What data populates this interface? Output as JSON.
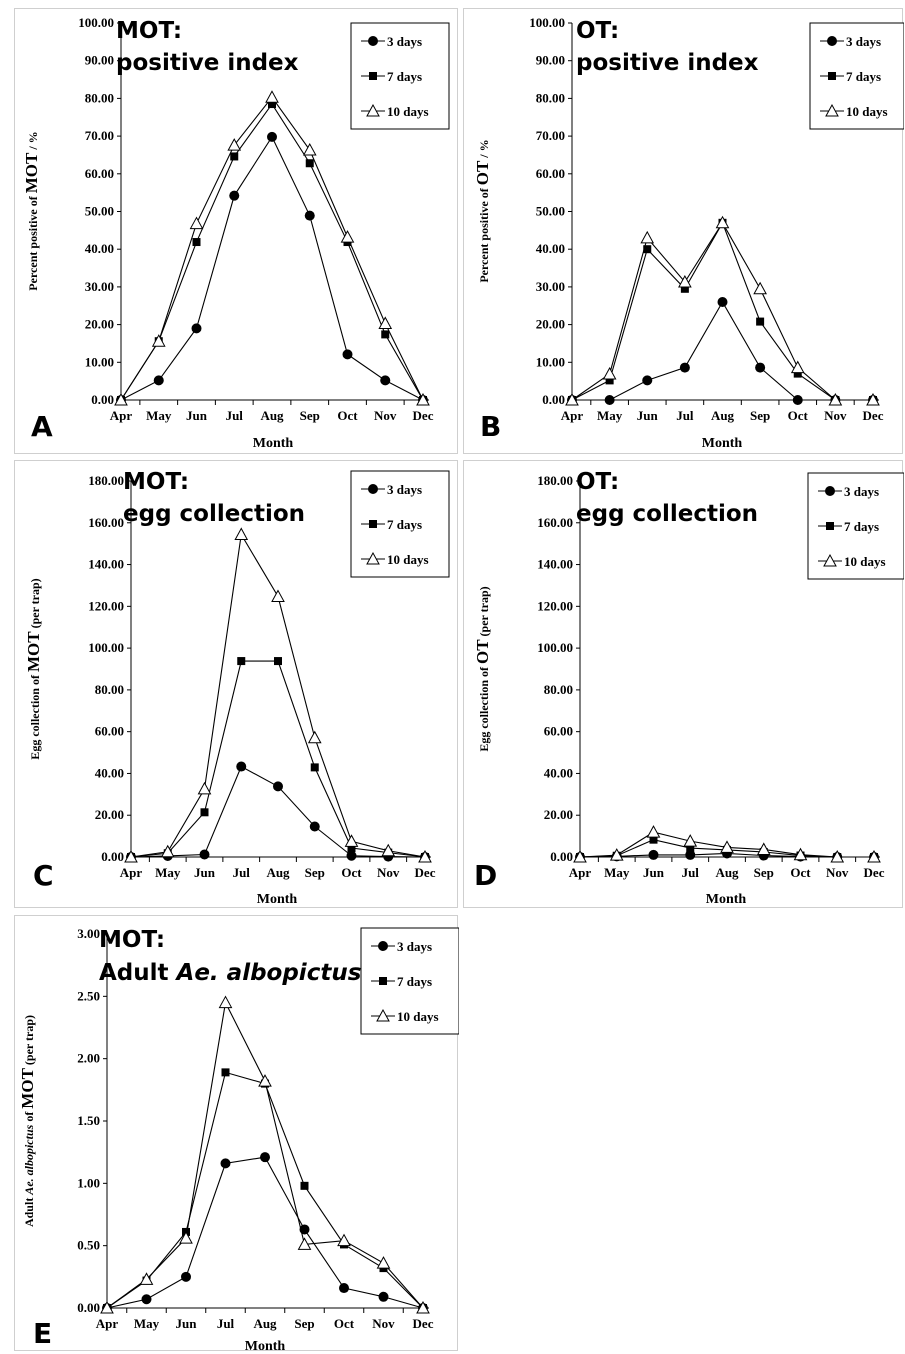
{
  "chart_data": [
    {
      "type": "line",
      "panel_label": "A",
      "title_lines": [
        "MOT:",
        "positive index"
      ],
      "ylabel_prefix": "Percent positive of ",
      "ylabel_big": "MOT",
      "ylabel_suffix": " / %",
      "xlabel": "Month",
      "categories": [
        "Apr",
        "May",
        "Jun",
        "Jul",
        "Aug",
        "Sep",
        "Oct",
        "Nov",
        "Dec"
      ],
      "ylim": [
        0,
        100
      ],
      "yticks": [
        "0.00",
        "10.00",
        "20.00",
        "30.00",
        "40.00",
        "50.00",
        "60.00",
        "70.00",
        "80.00",
        "90.00",
        "100.00"
      ],
      "series": [
        {
          "name": "3 days",
          "marker": "circle",
          "values": [
            0,
            5.2,
            19,
            54.2,
            69.8,
            48.9,
            12.1,
            5.2,
            0
          ]
        },
        {
          "name": "7 days",
          "marker": "square",
          "values": [
            0,
            15.6,
            41.9,
            64.6,
            78.5,
            62.8,
            41.9,
            17.4,
            0
          ]
        },
        {
          "name": "10 days",
          "marker": "triangle",
          "values": [
            0,
            15.6,
            46.8,
            67.6,
            80.3,
            66.3,
            43.2,
            20.3,
            0
          ]
        }
      ]
    },
    {
      "type": "line",
      "panel_label": "B",
      "title_lines": [
        "OT:",
        "positive index"
      ],
      "ylabel_prefix": "Percent positive of ",
      "ylabel_big": "OT",
      "ylabel_suffix": " / %",
      "xlabel": "Month",
      "categories": [
        "Apr",
        "May",
        "Jun",
        "Jul",
        "Aug",
        "Sep",
        "Oct",
        "Nov",
        "Dec"
      ],
      "ylim": [
        0,
        100
      ],
      "yticks": [
        "0.00",
        "10.00",
        "20.00",
        "30.00",
        "40.00",
        "50.00",
        "60.00",
        "70.00",
        "80.00",
        "90.00",
        "100.00"
      ],
      "series": [
        {
          "name": "3 days",
          "marker": "circle",
          "values": [
            0,
            0,
            5.2,
            8.6,
            26,
            8.6,
            0,
            0,
            0
          ]
        },
        {
          "name": "7 days",
          "marker": "square",
          "values": [
            0,
            5.2,
            40,
            29.5,
            47,
            20.8,
            7,
            0,
            0
          ]
        },
        {
          "name": "10 days",
          "marker": "triangle",
          "values": [
            0,
            6.9,
            43,
            31.3,
            47,
            29.5,
            8.6,
            0,
            0
          ]
        }
      ]
    },
    {
      "type": "line",
      "panel_label": "C",
      "title_lines": [
        "MOT:",
        "egg collection"
      ],
      "ylabel_prefix": "Egg collection of ",
      "ylabel_big": "MOT",
      "ylabel_suffix": " (per trap)",
      "xlabel": "Month",
      "categories": [
        "Apr",
        "May",
        "Jun",
        "Jul",
        "Aug",
        "Sep",
        "Oct",
        "Nov",
        "Dec"
      ],
      "ylim": [
        0,
        180
      ],
      "yticks": [
        "0.00",
        "20.00",
        "40.00",
        "60.00",
        "80.00",
        "100.00",
        "120.00",
        "140.00",
        "160.00",
        "180.00"
      ],
      "series": [
        {
          "name": "3 days",
          "marker": "circle",
          "values": [
            0,
            0.5,
            1.2,
            43.3,
            33.8,
            14.6,
            0.6,
            0.2,
            0
          ]
        },
        {
          "name": "7 days",
          "marker": "square",
          "values": [
            0,
            1.8,
            21.4,
            93.8,
            93.8,
            42.9,
            4.3,
            2.1,
            0
          ]
        },
        {
          "name": "10 days",
          "marker": "triangle",
          "values": [
            0,
            2.5,
            32.6,
            154.4,
            124.7,
            57.1,
            7.5,
            3,
            0
          ]
        }
      ]
    },
    {
      "type": "line",
      "panel_label": "D",
      "title_lines": [
        "OT:",
        "egg collection"
      ],
      "ylabel_prefix": "Egg collection of ",
      "ylabel_big": "OT",
      "ylabel_suffix": " (per trap)",
      "xlabel": "Month",
      "categories": [
        "Apr",
        "May",
        "Jun",
        "Jul",
        "Aug",
        "Sep",
        "Oct",
        "Nov",
        "Dec"
      ],
      "ylim": [
        0,
        180
      ],
      "yticks": [
        "0.00",
        "20.00",
        "40.00",
        "60.00",
        "80.00",
        "100.00",
        "120.00",
        "140.00",
        "160.00",
        "180.00"
      ],
      "series": [
        {
          "name": "3 days",
          "marker": "circle",
          "values": [
            0,
            0.3,
            1,
            1,
            1.7,
            0.7,
            0.2,
            0,
            0
          ]
        },
        {
          "name": "7 days",
          "marker": "square",
          "values": [
            0,
            0.6,
            8.3,
            4.3,
            3.4,
            2.4,
            0.7,
            0,
            0
          ]
        },
        {
          "name": "10 days",
          "marker": "triangle",
          "values": [
            0,
            0.9,
            11.9,
            7.6,
            4.6,
            3.6,
            1.1,
            0,
            0
          ]
        }
      ]
    },
    {
      "type": "line",
      "panel_label": "E",
      "title_lines": [
        "MOT:",
        "Adult ",
        "Ae. albopictus"
      ],
      "ylabel_prefix": "Adult ",
      "ylabel_italic": "Ae. albopictus",
      "ylabel_mid": " of ",
      "ylabel_big": "MOT",
      "ylabel_suffix": " (per trap)",
      "xlabel": "Month",
      "categories": [
        "Apr",
        "May",
        "Jun",
        "Jul",
        "Aug",
        "Sep",
        "Oct",
        "Nov",
        "Dec"
      ],
      "ylim": [
        0,
        3
      ],
      "yticks": [
        "0.00",
        "0.50",
        "1.00",
        "1.50",
        "2.00",
        "2.50",
        "3.00"
      ],
      "series": [
        {
          "name": "3 days",
          "marker": "circle",
          "values": [
            0,
            0.07,
            0.25,
            1.16,
            1.21,
            0.63,
            0.16,
            0.09,
            0
          ]
        },
        {
          "name": "7 days",
          "marker": "square",
          "values": [
            0,
            0.22,
            0.61,
            1.89,
            1.8,
            0.98,
            0.51,
            0.32,
            0
          ]
        },
        {
          "name": "10 days",
          "marker": "triangle",
          "values": [
            0,
            0.23,
            0.56,
            2.45,
            1.82,
            0.51,
            0.54,
            0.36,
            0
          ]
        }
      ]
    }
  ]
}
